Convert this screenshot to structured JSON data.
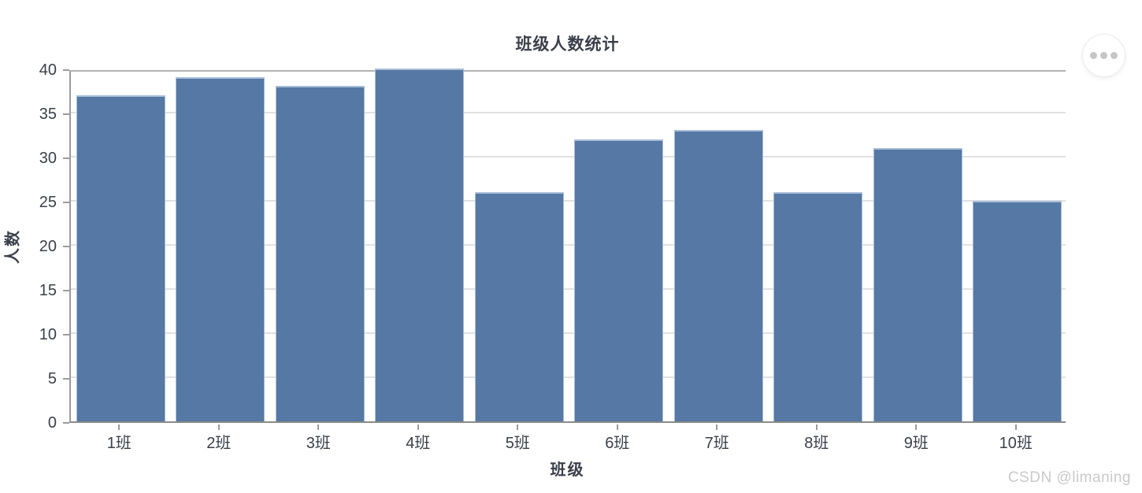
{
  "header": {
    "title": "班级人数统计"
  },
  "menu_button": {
    "icon": "ellipsis-icon"
  },
  "watermark": {
    "text": "CSDN @limaning"
  },
  "colors": {
    "bar": "#5578a4",
    "bar_edge": "#a9bdd8",
    "axis": "#9b9b9b",
    "axis_dark": "#8a8a8a",
    "grid": "#e1e1e1",
    "plot_top_border": "#b3b3b3",
    "text": "#3a3f4a",
    "watermark": "#c9c9c9",
    "button_border": "#ececec",
    "button_dots": "#c6c6c6"
  },
  "chart_data": {
    "type": "bar",
    "title": "班级人数统计",
    "xlabel": "班级",
    "ylabel": "人数",
    "categories": [
      "1班",
      "2班",
      "3班",
      "4班",
      "5班",
      "6班",
      "7班",
      "8班",
      "9班",
      "10班"
    ],
    "values": [
      37,
      39,
      38,
      40,
      26,
      32,
      33,
      26,
      31,
      25
    ],
    "ylim": [
      0,
      40
    ],
    "yticks": [
      0,
      5,
      10,
      15,
      20,
      25,
      30,
      35,
      40
    ],
    "grid": "horizontal-only",
    "legend": "none",
    "bar_color": "#5578a4"
  }
}
